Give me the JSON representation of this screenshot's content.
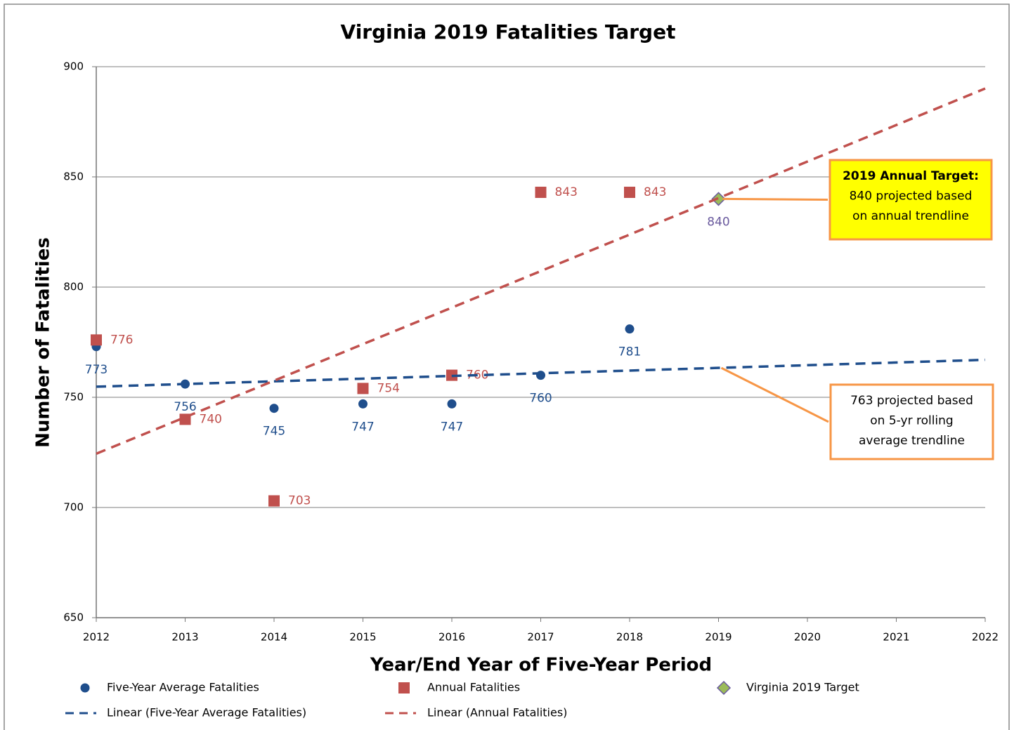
{
  "chart_data": {
    "type": "scatter",
    "title": "Virginia 2019 Fatalities Target",
    "x_label": "Year/End Year of Five-Year Period",
    "y_label": "Number of Fatalities",
    "xlim": [
      2012,
      2022
    ],
    "ylim": [
      650,
      900
    ],
    "xticks": [
      2012,
      2013,
      2014,
      2015,
      2016,
      2017,
      2018,
      2019,
      2020,
      2021,
      2022
    ],
    "yticks": [
      650,
      700,
      750,
      800,
      850,
      900
    ],
    "grid": true,
    "series": [
      {
        "name": "Five-Year Average Fatalities",
        "color": "#1f4e8c",
        "marker": "circle",
        "labels": "below",
        "x": [
          2012,
          2013,
          2014,
          2015,
          2016,
          2017,
          2018
        ],
        "values": [
          773,
          756,
          745,
          747,
          747,
          760,
          781
        ]
      },
      {
        "name": "Annual Fatalities",
        "color": "#c0504d",
        "marker": "square",
        "labels": "right",
        "x": [
          2012,
          2013,
          2014,
          2015,
          2016,
          2017,
          2018
        ],
        "values": [
          776,
          740,
          703,
          754,
          760,
          843,
          843
        ]
      },
      {
        "name": "Virginia 2019 Target",
        "color": "#9bbb59",
        "label_color": "#6a5a9e",
        "marker": "diamond",
        "labels": "below",
        "x": [
          2019
        ],
        "values": [
          840
        ]
      },
      {
        "name": "Linear (Five-Year Average Fatalities)",
        "color": "#1f4e8c",
        "marker": "dash",
        "x": [
          2012,
          2022
        ],
        "values": [
          754.8,
          767.0
        ]
      },
      {
        "name": "Linear (Annual Fatalities)",
        "color": "#c0504d",
        "marker": "dash",
        "x": [
          2012,
          2022
        ],
        "values": [
          724.4,
          890.1
        ]
      }
    ],
    "annotations": [
      {
        "lines": [
          "2019 Annual Target:",
          "840 projected based",
          "on annual trendline"
        ],
        "fill": "#ffff00",
        "border": "#f79646"
      },
      {
        "lines": [
          "763 projected based",
          "on 5-yr rolling",
          "average trendline"
        ],
        "fill": "#ffffff",
        "border": "#f79646"
      }
    ]
  }
}
